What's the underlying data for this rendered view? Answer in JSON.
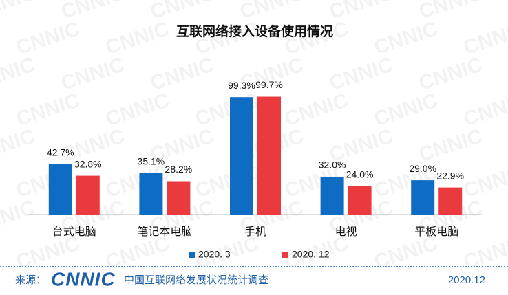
{
  "chart_data": {
    "type": "bar",
    "title": "互联网络接入设备使用情况",
    "categories": [
      "台式电脑",
      "笔记本电脑",
      "手机",
      "电视",
      "平板电脑"
    ],
    "series": [
      {
        "name": "2020. 3",
        "color": "#0f6cc5",
        "values": [
          42.7,
          35.1,
          99.3,
          32.0,
          29.0
        ],
        "value_labels": [
          "42.7%",
          "35.1%",
          "99.3%",
          "32.0%",
          "29.0%"
        ]
      },
      {
        "name": "2020. 12",
        "color": "#ea3a3e",
        "values": [
          32.8,
          28.2,
          99.7,
          24.0,
          22.9
        ],
        "value_labels": [
          "32.8%",
          "28.2%",
          "99.7%",
          "24.0%",
          "22.9%"
        ]
      }
    ],
    "legend": "bottom"
  },
  "watermark": "CNNIC",
  "footer": {
    "source_label": "来源：",
    "logo": "CNNIC",
    "survey": "中国互联网络发展状况统计调查",
    "date": "2020.12"
  }
}
